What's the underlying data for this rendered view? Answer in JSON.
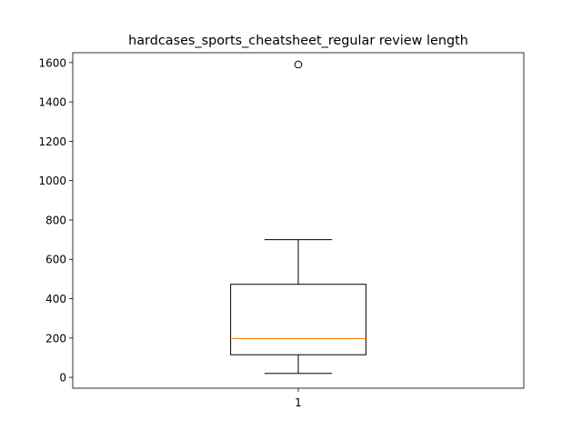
{
  "chart_data": {
    "type": "boxplot",
    "title": "hardcases_sports_cheatsheet_regular review length",
    "xlabel": "",
    "ylabel": "",
    "categories": [
      "1"
    ],
    "boxes": [
      {
        "label": "1",
        "whisker_low": 20,
        "q1": 115,
        "median": 197,
        "q3": 473,
        "whisker_high": 700,
        "outliers": [
          1590
        ]
      }
    ],
    "ylim": [
      -55,
      1650
    ],
    "yticks": [
      0,
      200,
      400,
      600,
      800,
      1000,
      1200,
      1400,
      1600
    ],
    "grid": false,
    "colors": {
      "box": "#000000",
      "median": "#ff7f0e",
      "whisker": "#000000",
      "flier": "#000000"
    }
  }
}
